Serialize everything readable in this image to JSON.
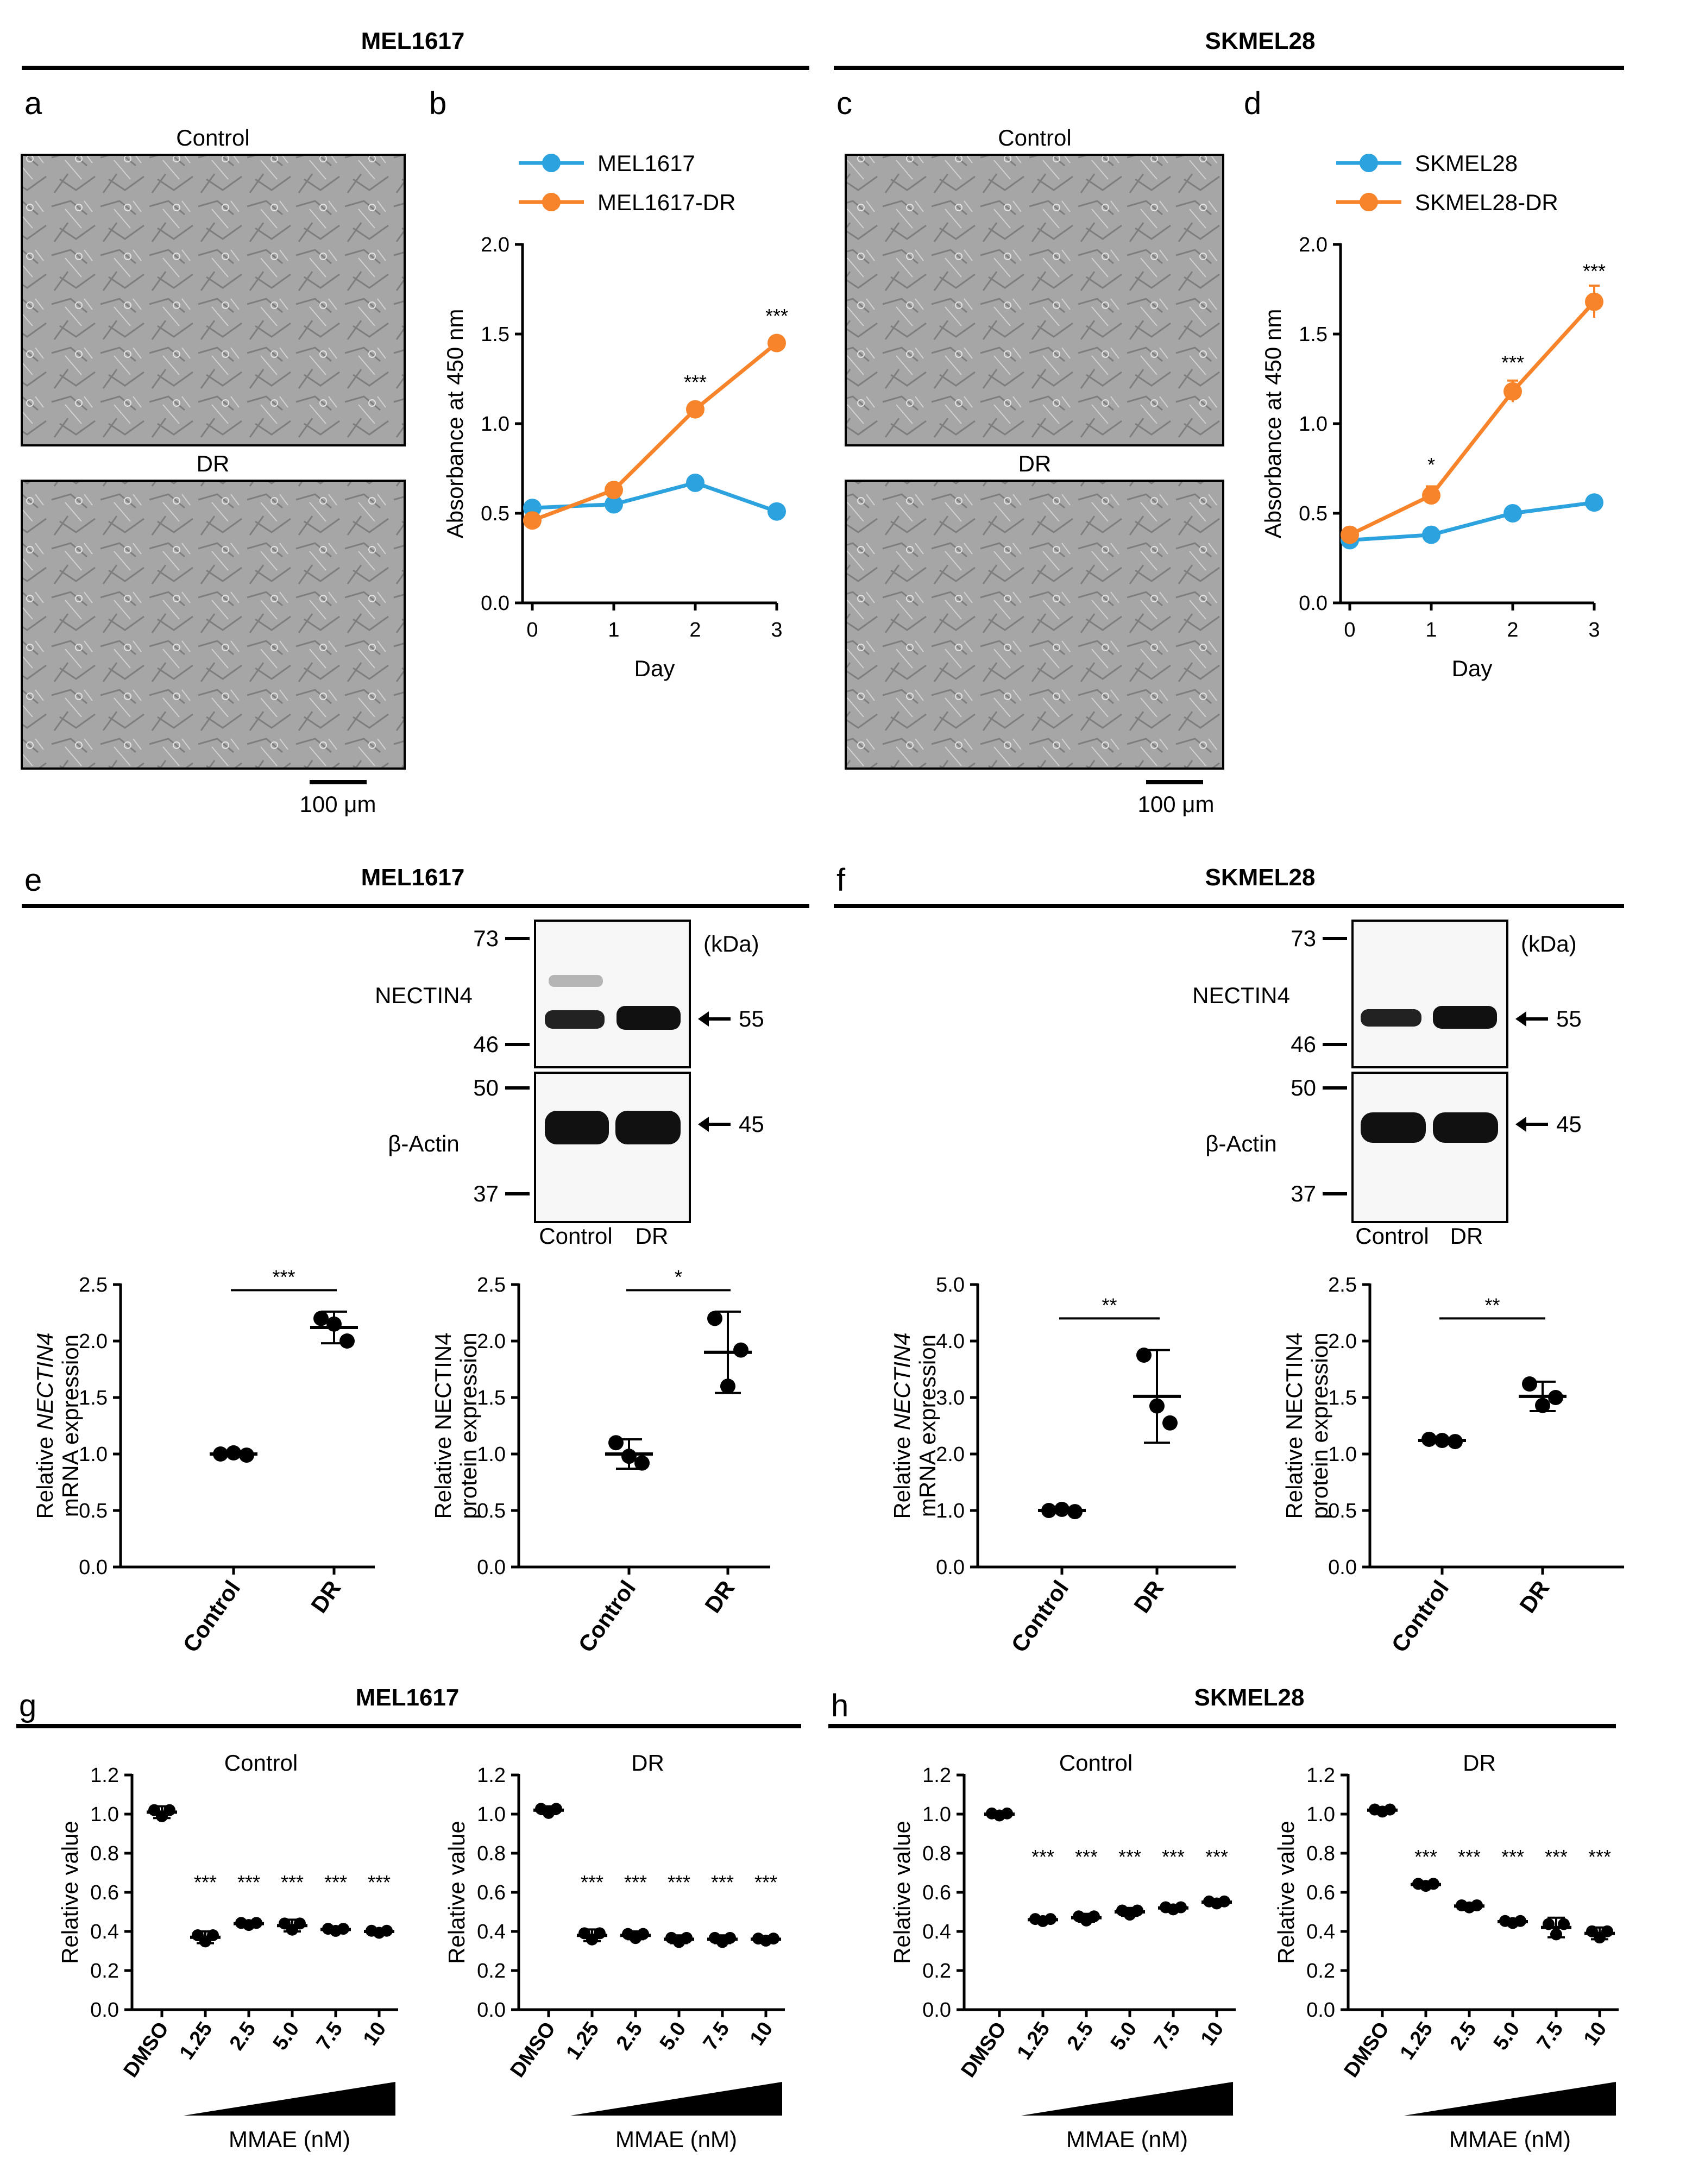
{
  "figure": {
    "headers": {
      "mel1617": "MEL1617",
      "skmel28": "SKMEL28"
    },
    "panel_letters": [
      "a",
      "b",
      "c",
      "d",
      "e",
      "f",
      "g",
      "h"
    ],
    "micrographs": {
      "a_top_label": "Control",
      "a_bottom_label": "DR",
      "c_top_label": "Control",
      "c_bottom_label": "DR",
      "scale_bar": "100 μm"
    },
    "blots": {
      "e": {
        "ladder": [
          "73",
          "46",
          "50",
          "37"
        ],
        "unit": "(kDa)",
        "bands": [
          "NECTIN4",
          "β-Actin"
        ],
        "arrows": [
          "55",
          "45"
        ],
        "lanes": [
          "Control",
          "DR"
        ]
      },
      "f": {
        "ladder": [
          "73",
          "46",
          "50",
          "37"
        ],
        "unit": "(kDa)",
        "bands": [
          "NECTIN4",
          "β-Actin"
        ],
        "arrows": [
          "55",
          "45"
        ],
        "lanes": [
          "Control",
          "DR"
        ]
      }
    },
    "mmae_label": "MMAE (nM)"
  },
  "colors": {
    "blue": "#2ca3df",
    "orange": "#f7842a",
    "black": "#000000",
    "micrograph": "#a6a6a6"
  },
  "chart_data": [
    {
      "id": "b",
      "type": "line",
      "xlabel": "Day",
      "ylabel": "Absorbance at 450 nm",
      "x": [
        0,
        1,
        2,
        3
      ],
      "ylim": [
        0,
        2.0
      ],
      "yticks": [
        "0.0",
        "0.5",
        "1.0",
        "1.5",
        "2.0"
      ],
      "xticks": [
        "0",
        "1",
        "2",
        "3"
      ],
      "series": [
        {
          "name": "MEL1617",
          "color": "#2ca3df",
          "values": [
            0.53,
            0.55,
            0.67,
            0.51
          ],
          "errors": [
            0.02,
            0.05,
            0.02,
            0.01
          ]
        },
        {
          "name": "MEL1617-DR",
          "color": "#f7842a",
          "values": [
            0.46,
            0.63,
            1.08,
            1.45
          ],
          "errors": [
            0.02,
            0.02,
            0.03,
            0.03
          ]
        }
      ],
      "annotations": [
        {
          "x": 2,
          "y": 1.23,
          "text": "***"
        },
        {
          "x": 3,
          "y": 1.6,
          "text": "***"
        }
      ]
    },
    {
      "id": "d",
      "type": "line",
      "xlabel": "Day",
      "ylabel": "Absorbance at 450 nm",
      "x": [
        0,
        1,
        2,
        3
      ],
      "ylim": [
        0,
        2.0
      ],
      "yticks": [
        "0.0",
        "0.5",
        "1.0",
        "1.5",
        "2.0"
      ],
      "xticks": [
        "0",
        "1",
        "2",
        "3"
      ],
      "series": [
        {
          "name": "SKMEL28",
          "color": "#2ca3df",
          "values": [
            0.35,
            0.38,
            0.5,
            0.56
          ],
          "errors": [
            0.02,
            0.02,
            0.02,
            0.01
          ]
        },
        {
          "name": "SKMEL28-DR",
          "color": "#f7842a",
          "values": [
            0.38,
            0.6,
            1.18,
            1.68
          ],
          "errors": [
            0.02,
            0.05,
            0.06,
            0.09
          ]
        }
      ],
      "annotations": [
        {
          "x": 1,
          "y": 0.77,
          "text": "*"
        },
        {
          "x": 2,
          "y": 1.34,
          "text": "***"
        },
        {
          "x": 3,
          "y": 1.85,
          "text": "***"
        }
      ]
    },
    {
      "id": "e1",
      "type": "scatter",
      "ylabel_lines": [
        "Relative NECTIN4",
        "mRNA expression"
      ],
      "italic_word": "NECTIN4",
      "categories": [
        "Control",
        "DR"
      ],
      "ylim": [
        0,
        2.5
      ],
      "yticks": [
        "0.0",
        "0.5",
        "1.0",
        "1.5",
        "2.0",
        "2.5"
      ],
      "groups": [
        {
          "points": [
            1.0,
            0.99,
            1.01
          ],
          "mean": 1.0,
          "sd": 0.02
        },
        {
          "points": [
            2.2,
            2.0,
            2.15
          ],
          "mean": 2.12,
          "sd": 0.14
        }
      ],
      "significance": "***",
      "sig_y": 2.45
    },
    {
      "id": "e2",
      "type": "scatter",
      "ylabel_lines": [
        "Relative NECTIN4",
        "protein expression"
      ],
      "categories": [
        "Control",
        "DR"
      ],
      "ylim": [
        0,
        2.5
      ],
      "yticks": [
        "0.0",
        "0.5",
        "1.0",
        "1.5",
        "2.0",
        "2.5"
      ],
      "groups": [
        {
          "points": [
            1.1,
            0.92,
            0.98
          ],
          "mean": 1.0,
          "sd": 0.13
        },
        {
          "points": [
            2.2,
            1.92,
            1.6
          ],
          "mean": 1.9,
          "sd": 0.36
        }
      ],
      "significance": "*",
      "sig_y": 2.45
    },
    {
      "id": "f1",
      "type": "scatter",
      "ylabel_lines": [
        "Relative NECTIN4",
        "mRNA expression"
      ],
      "italic_word": "NECTIN4",
      "categories": [
        "Control",
        "DR"
      ],
      "ylim": [
        0,
        5.0
      ],
      "yticks": [
        "0.0",
        "1.0",
        "2.0",
        "3.0",
        "4.0",
        "5.0"
      ],
      "groups": [
        {
          "points": [
            1.0,
            0.98,
            1.02
          ],
          "mean": 1.0,
          "sd": 0.02
        },
        {
          "points": [
            3.75,
            2.55,
            2.85
          ],
          "mean": 3.02,
          "sd": 0.82
        }
      ],
      "significance": "**",
      "sig_y": 4.4
    },
    {
      "id": "f2",
      "type": "scatter",
      "ylabel_lines": [
        "Relative NECTIN4",
        "protein expression"
      ],
      "categories": [
        "Control",
        "DR"
      ],
      "ylim": [
        0,
        2.5
      ],
      "yticks": [
        "0.0",
        "0.5",
        "1.0",
        "1.5",
        "2.0",
        "2.5"
      ],
      "groups": [
        {
          "points": [
            1.13,
            1.11,
            1.12
          ],
          "mean": 1.12,
          "sd": 0.02
        },
        {
          "points": [
            1.62,
            1.5,
            1.43
          ],
          "mean": 1.51,
          "sd": 0.13
        }
      ],
      "significance": "**",
      "sig_y": 2.2
    },
    {
      "id": "g1",
      "type": "scatter",
      "title": "Control",
      "ylabel": "Relative value",
      "categories": [
        "DMSO",
        "1.25",
        "2.5",
        "5.0",
        "7.5",
        "10"
      ],
      "ylim": [
        0,
        1.2
      ],
      "yticks": [
        "0.0",
        "0.2",
        "0.4",
        "0.6",
        "0.8",
        "1.0",
        "1.2"
      ],
      "groups": [
        {
          "mean": 1.01,
          "sd": 0.03
        },
        {
          "mean": 0.37,
          "sd": 0.03
        },
        {
          "mean": 0.44,
          "sd": 0.01
        },
        {
          "mean": 0.43,
          "sd": 0.03
        },
        {
          "mean": 0.41,
          "sd": 0.01
        },
        {
          "mean": 0.4,
          "sd": 0.01
        }
      ],
      "significance": [
        "",
        "***",
        "***",
        "***",
        "***",
        "***"
      ],
      "sig_y": 0.65
    },
    {
      "id": "g2",
      "type": "scatter",
      "title": "DR",
      "ylabel": "Relative value",
      "categories": [
        "DMSO",
        "1.25",
        "2.5",
        "5.0",
        "7.5",
        "10"
      ],
      "ylim": [
        0,
        1.2
      ],
      "yticks": [
        "0.0",
        "0.2",
        "0.4",
        "0.6",
        "0.8",
        "1.0",
        "1.2"
      ],
      "groups": [
        {
          "mean": 1.02,
          "sd": 0.02
        },
        {
          "mean": 0.38,
          "sd": 0.03
        },
        {
          "mean": 0.38,
          "sd": 0.02
        },
        {
          "mean": 0.36,
          "sd": 0.02
        },
        {
          "mean": 0.36,
          "sd": 0.02
        },
        {
          "mean": 0.36,
          "sd": 0.01
        }
      ],
      "significance": [
        "",
        "***",
        "***",
        "***",
        "***",
        "***"
      ],
      "sig_y": 0.65
    },
    {
      "id": "h1",
      "type": "scatter",
      "title": "Control",
      "ylabel": "Relative value",
      "categories": [
        "DMSO",
        "1.25",
        "2.5",
        "5.0",
        "7.5",
        "10"
      ],
      "ylim": [
        0,
        1.2
      ],
      "yticks": [
        "0.0",
        "0.2",
        "0.4",
        "0.6",
        "0.8",
        "1.0",
        "1.2"
      ],
      "groups": [
        {
          "mean": 1.0,
          "sd": 0.01
        },
        {
          "mean": 0.46,
          "sd": 0.01
        },
        {
          "mean": 0.47,
          "sd": 0.02
        },
        {
          "mean": 0.5,
          "sd": 0.02
        },
        {
          "mean": 0.52,
          "sd": 0.01
        },
        {
          "mean": 0.55,
          "sd": 0.01
        }
      ],
      "significance": [
        "",
        "***",
        "***",
        "***",
        "***",
        "***"
      ],
      "sig_y": 0.78
    },
    {
      "id": "h2",
      "type": "scatter",
      "title": "DR",
      "ylabel": "Relative value",
      "categories": [
        "DMSO",
        "1.25",
        "2.5",
        "5.0",
        "7.5",
        "10"
      ],
      "ylim": [
        0,
        1.2
      ],
      "yticks": [
        "0.0",
        "0.2",
        "0.4",
        "0.6",
        "0.8",
        "1.0",
        "1.2"
      ],
      "groups": [
        {
          "mean": 1.02,
          "sd": 0.01
        },
        {
          "mean": 0.64,
          "sd": 0.01
        },
        {
          "mean": 0.53,
          "sd": 0.01
        },
        {
          "mean": 0.45,
          "sd": 0.01
        },
        {
          "mean": 0.42,
          "sd": 0.05
        },
        {
          "mean": 0.39,
          "sd": 0.03
        }
      ],
      "significance": [
        "",
        "***",
        "***",
        "***",
        "***",
        "***"
      ],
      "sig_y": 0.78
    }
  ]
}
